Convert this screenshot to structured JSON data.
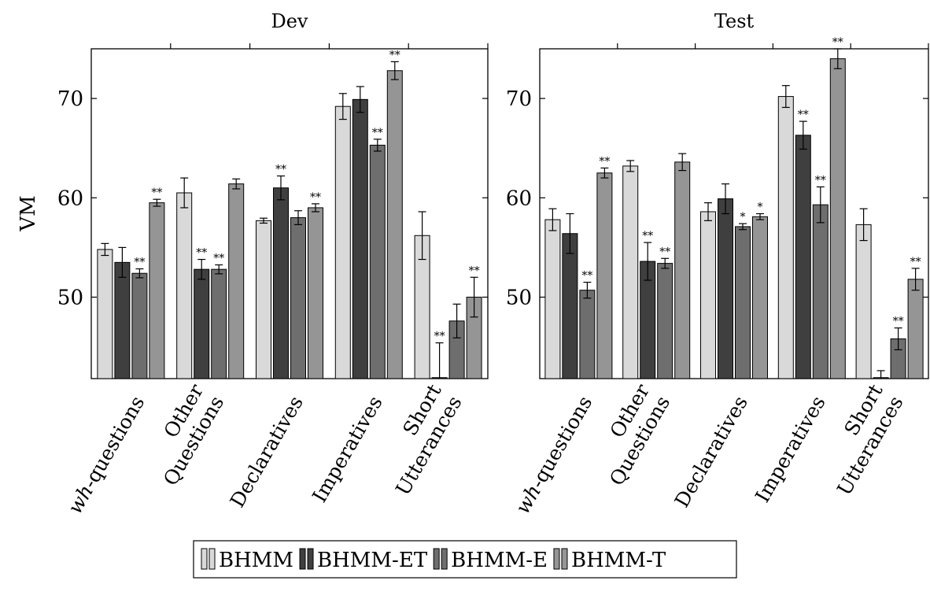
{
  "chart_data": {
    "type": "bar",
    "ylabel": "VM",
    "ylim": [
      41.8,
      75
    ],
    "yticks": [
      50,
      60,
      70
    ],
    "categories": [
      "wh-questions",
      "Other Questions",
      "Declaratives",
      "Imperatives",
      "Short Utterances"
    ],
    "category_lines": [
      [
        "wh-questions"
      ],
      [
        "Other",
        "Questions"
      ],
      [
        "Declaratives"
      ],
      [
        "Imperatives"
      ],
      [
        "Short",
        "Utterances"
      ]
    ],
    "legend": {
      "placement": "bottom-center",
      "entries": [
        "BHMM",
        "BHMM-ET",
        "BHMM-E",
        "BHMM-T"
      ],
      "colors": [
        "#d9d9d9",
        "#3f3f3f",
        "#6e6e6e",
        "#959595"
      ]
    },
    "panels": [
      {
        "title": "Dev",
        "series": [
          {
            "name": "BHMM",
            "values": [
              54.8,
              60.5,
              57.7,
              69.2,
              56.2
            ],
            "errors": [
              0.6,
              1.5,
              0.25,
              1.3,
              2.4
            ],
            "sig": [
              "",
              "",
              "",
              "",
              ""
            ]
          },
          {
            "name": "BHMM-ET",
            "values": [
              53.5,
              52.8,
              61.0,
              69.9,
              41.9
            ],
            "errors": [
              1.5,
              1.0,
              1.2,
              1.3,
              3.5
            ],
            "sig": [
              "",
              "**",
              "**",
              "",
              "**"
            ]
          },
          {
            "name": "BHMM-E",
            "values": [
              52.4,
              52.8,
              58.0,
              65.3,
              47.6
            ],
            "errors": [
              0.45,
              0.45,
              0.7,
              0.6,
              1.7
            ],
            "sig": [
              "**",
              "**",
              "",
              "**",
              ""
            ]
          },
          {
            "name": "BHMM-T",
            "values": [
              59.5,
              61.4,
              59.0,
              72.8,
              50.0
            ],
            "errors": [
              0.35,
              0.5,
              0.4,
              0.9,
              2.0
            ],
            "sig": [
              "**",
              "",
              "**",
              "**",
              "**"
            ]
          }
        ]
      },
      {
        "title": "Test",
        "series": [
          {
            "name": "BHMM",
            "values": [
              57.8,
              63.2,
              58.6,
              70.2,
              57.3
            ],
            "errors": [
              1.1,
              0.55,
              0.9,
              1.1,
              1.6
            ],
            "sig": [
              "",
              "",
              "",
              "",
              ""
            ]
          },
          {
            "name": "BHMM-ET",
            "values": [
              56.4,
              53.6,
              59.9,
              66.3,
              41.9
            ],
            "errors": [
              2.0,
              1.9,
              1.5,
              1.4,
              0.7
            ],
            "sig": [
              "",
              "**",
              "",
              "**",
              ""
            ]
          },
          {
            "name": "BHMM-E",
            "values": [
              50.7,
              53.4,
              57.1,
              59.3,
              45.8
            ],
            "errors": [
              0.8,
              0.5,
              0.3,
              1.8,
              1.1
            ],
            "sig": [
              "**",
              "**",
              "*",
              "**",
              "**"
            ]
          },
          {
            "name": "BHMM-T",
            "values": [
              62.5,
              63.6,
              58.1,
              74.0,
              51.8
            ],
            "errors": [
              0.5,
              0.85,
              0.3,
              1.0,
              1.1
            ],
            "sig": [
              "**",
              "",
              "*",
              "**",
              "**"
            ]
          }
        ]
      }
    ]
  }
}
